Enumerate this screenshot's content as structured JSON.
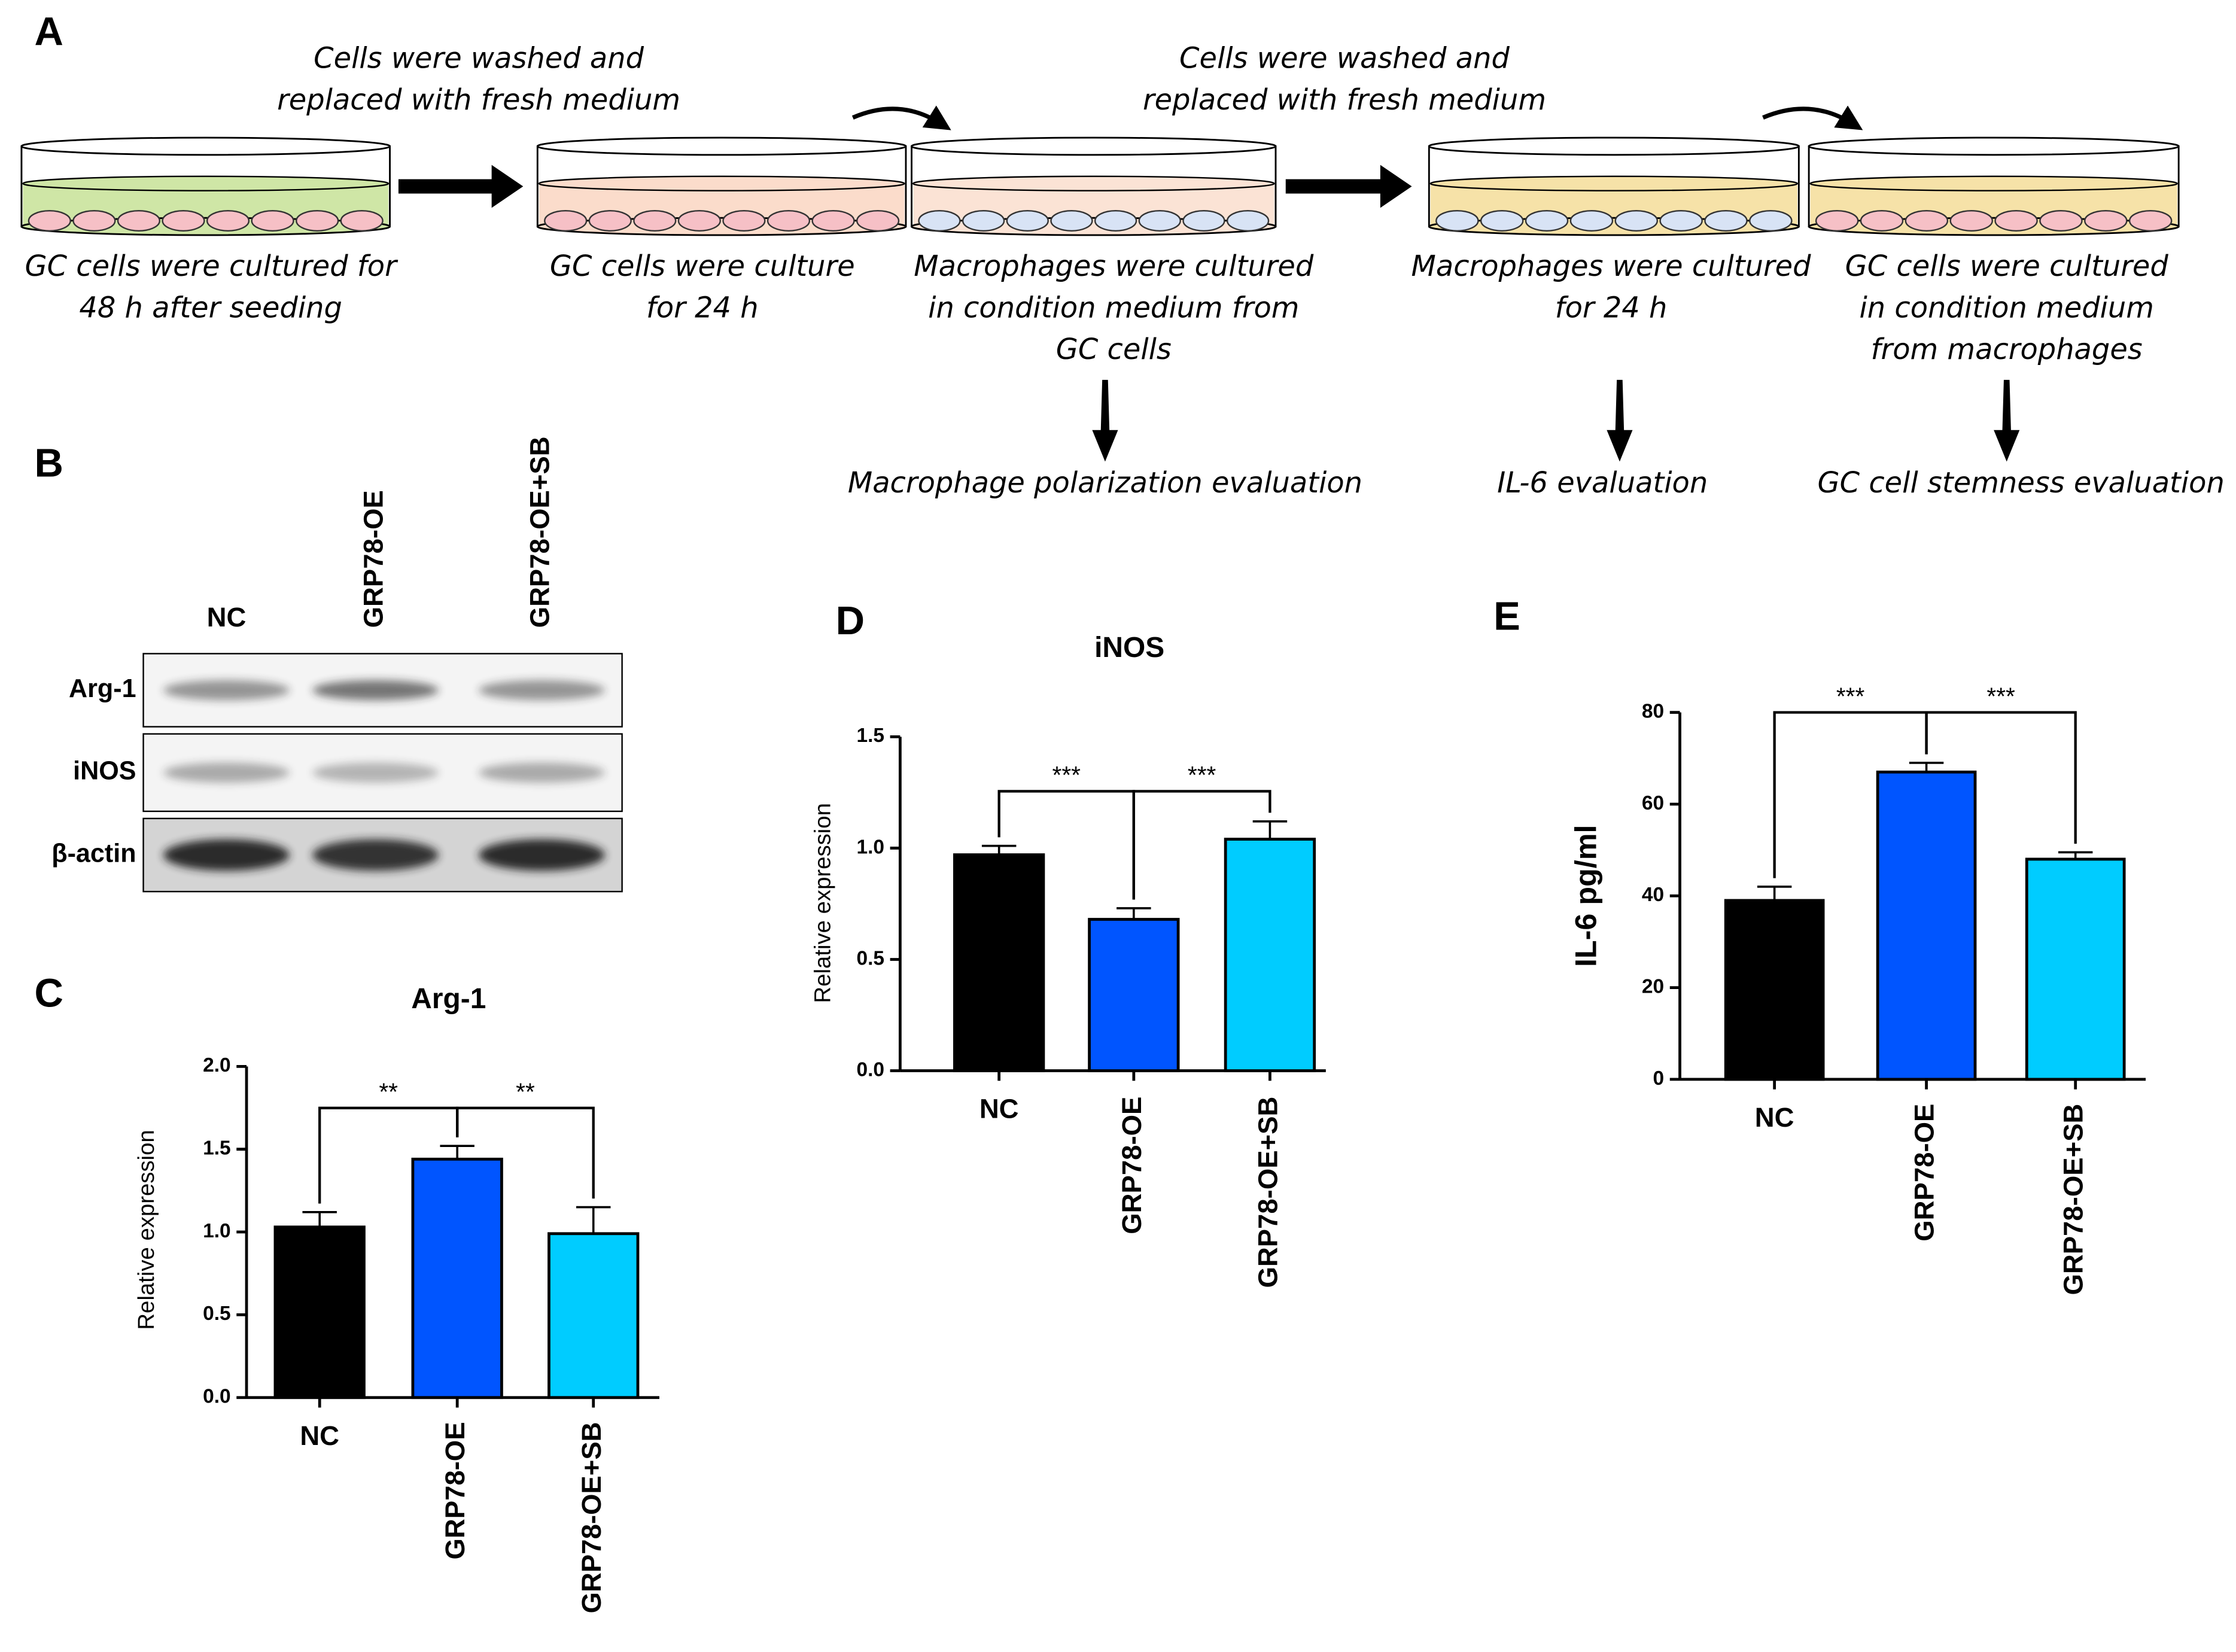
{
  "figure_a": {
    "label": "A",
    "notes": [
      [
        "Cells were washed and",
        "replaced with fresh medium"
      ],
      [
        "Cells were washed and",
        "replaced with fresh medium"
      ]
    ],
    "steps": [
      [
        "GC cells were cultured for",
        "48 h after seeding"
      ],
      [
        "GC cells were culture",
        "for 24 h"
      ],
      [
        "Macrophages were cultured",
        "in condition medium from",
        "GC cells"
      ],
      [
        "Macrophages were cultured",
        "for 24 h"
      ],
      [
        "GC cells were cultured",
        "in condition medium",
        "from macrophages"
      ]
    ],
    "evaluations": [
      "Macrophage polarization evaluation",
      "IL-6 evaluation",
      "GC cell stemness evaluation"
    ]
  },
  "figure_b": {
    "label": "B",
    "lanes": [
      "NC",
      "GRP78-OE",
      "GRP78-OE+SB"
    ],
    "rows": [
      "Arg-1",
      "iNOS",
      "β-actin"
    ]
  },
  "chart_data": [
    {
      "label": "C",
      "type": "bar",
      "title": "Arg-1",
      "y_label": "Relative expression",
      "categories": [
        "NC",
        "GRP78-OE",
        "GRP78-OE+SB"
      ],
      "values": [
        1.03,
        1.44,
        0.99
      ],
      "errors": [
        0.09,
        0.08,
        0.16
      ],
      "colors": [
        "#000000",
        "#0055ff",
        "#00ccff"
      ],
      "ylim": [
        0,
        2.0
      ],
      "yticks": [
        {
          "value": 0,
          "label": "0.0"
        },
        {
          "value": 0.5,
          "label": "0.5"
        },
        {
          "value": 1.0,
          "label": "1.0"
        },
        {
          "value": 1.5,
          "label": "1.5"
        },
        {
          "value": 2.0,
          "label": "2.0"
        }
      ],
      "annotations": [
        "**",
        "**"
      ]
    },
    {
      "label": "D",
      "type": "bar",
      "title": "iNOS",
      "y_label": "Relative expression",
      "categories": [
        "NC",
        "GRP78-OE",
        "GRP78-OE+SB"
      ],
      "values": [
        0.97,
        0.68,
        1.04
      ],
      "errors": [
        0.04,
        0.05,
        0.08
      ],
      "colors": [
        "#000000",
        "#0055ff",
        "#00ccff"
      ],
      "ylim": [
        0,
        1.5
      ],
      "yticks": [
        {
          "value": 0,
          "label": "0.0"
        },
        {
          "value": 0.5,
          "label": "0.5"
        },
        {
          "value": 1.0,
          "label": "1.0"
        },
        {
          "value": 1.5,
          "label": "1.5"
        }
      ],
      "annotations": [
        "***",
        "***"
      ]
    },
    {
      "label": "E",
      "type": "bar",
      "y_label": "IL-6 pg/ml",
      "categories": [
        "NC",
        "GRP78-OE",
        "GRP78-OE+SB"
      ],
      "values": [
        39,
        67,
        48
      ],
      "errors": [
        3,
        2,
        1.5
      ],
      "colors": [
        "#000000",
        "#0055ff",
        "#00ccff"
      ],
      "ylim": [
        0,
        80
      ],
      "yticks": [
        0,
        20,
        40,
        60,
        80
      ],
      "annotations": [
        "***",
        "***"
      ]
    }
  ]
}
